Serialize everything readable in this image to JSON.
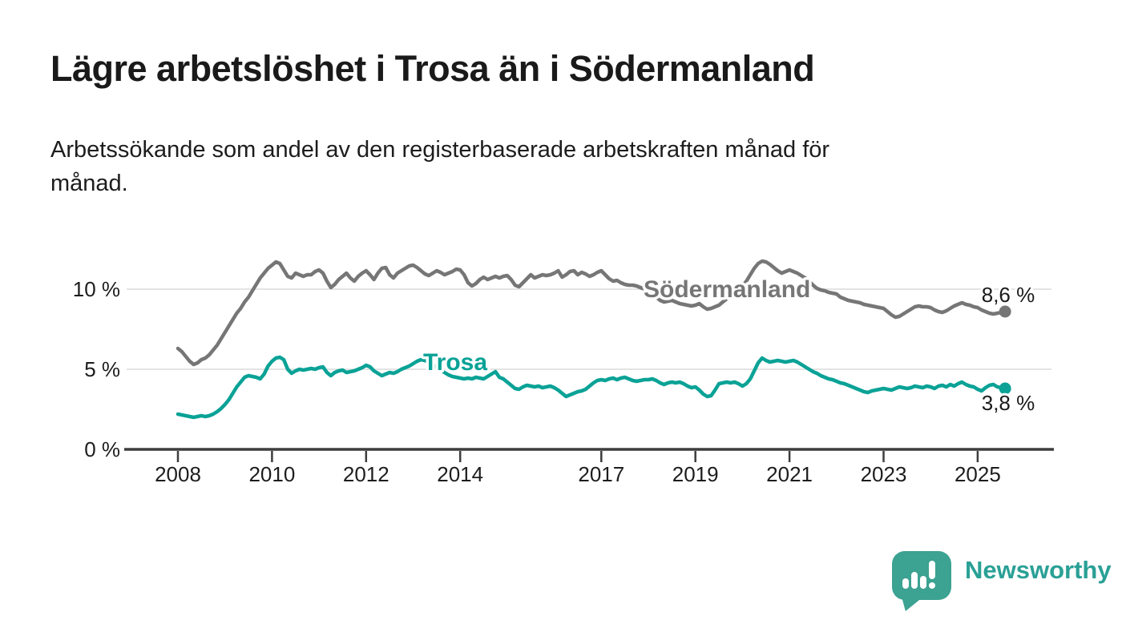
{
  "header": {
    "title": "Lägre arbetslöshet i Trosa än i Södermanland",
    "subtitle_lines": [
      "Arbetssökande som andel av den registerbaserade arbetskraften månad för",
      "månad."
    ]
  },
  "chart_data": {
    "type": "line",
    "title": "Lägre arbetslöshet i Trosa än i Södermanland",
    "xlabel": "",
    "ylabel": "",
    "unit": "%",
    "grid": "horizontal-gridlines",
    "legend_position": "inline-series-labels",
    "x_start": 2008,
    "x_interval": "monthly",
    "x_tick_years": [
      2008,
      2010,
      2012,
      2014,
      2017,
      2019,
      2021,
      2023,
      2025
    ],
    "x_tick_labels": [
      "2008",
      "2010",
      "2012",
      "2014",
      "2017",
      "2019",
      "2021",
      "2023",
      "2025"
    ],
    "y_ticks": [
      {
        "value": 0,
        "label": "0 %"
      },
      {
        "value": 5,
        "label": "5 %"
      },
      {
        "value": 10,
        "label": "10 %"
      }
    ],
    "ylim": [
      0,
      12.5
    ],
    "series": [
      {
        "name": "Södermanland",
        "color": "#767676",
        "end_label": "8,6 %",
        "end_value": 8.6,
        "values": [
          6.3,
          6.1,
          5.8,
          5.5,
          5.3,
          5.4,
          5.6,
          5.7,
          5.9,
          6.2,
          6.5,
          6.9,
          7.3,
          7.7,
          8.1,
          8.5,
          8.8,
          9.2,
          9.5,
          9.9,
          10.3,
          10.7,
          11.0,
          11.3,
          11.5,
          11.7,
          11.6,
          11.2,
          10.8,
          10.7,
          11.0,
          10.9,
          10.8,
          10.9,
          10.9,
          11.1,
          11.2,
          11.0,
          10.5,
          10.1,
          10.3,
          10.6,
          10.8,
          11.0,
          10.7,
          10.5,
          10.8,
          11.0,
          11.15,
          10.9,
          10.6,
          11.0,
          11.3,
          11.35,
          10.9,
          10.7,
          11.0,
          11.15,
          11.3,
          11.45,
          11.5,
          11.35,
          11.15,
          10.95,
          10.85,
          11.0,
          11.15,
          11.05,
          10.9,
          11.0,
          11.1,
          11.25,
          11.2,
          10.9,
          10.4,
          10.2,
          10.35,
          10.6,
          10.75,
          10.6,
          10.7,
          10.8,
          10.7,
          10.8,
          10.85,
          10.6,
          10.25,
          10.15,
          10.4,
          10.65,
          10.9,
          10.7,
          10.8,
          10.9,
          10.85,
          10.9,
          11.0,
          11.15,
          10.75,
          10.9,
          11.1,
          11.15,
          10.9,
          11.05,
          10.95,
          10.8,
          10.9,
          11.05,
          11.15,
          10.9,
          10.65,
          10.5,
          10.55,
          10.4,
          10.3,
          10.25,
          10.25,
          10.2,
          10.1,
          10.0,
          9.9,
          9.7,
          9.5,
          9.3,
          9.2,
          9.25,
          9.3,
          9.2,
          9.1,
          9.05,
          9.0,
          8.95,
          9.0,
          9.1,
          8.9,
          8.75,
          8.8,
          8.9,
          9.0,
          9.2,
          9.4,
          9.6,
          9.8,
          10.0,
          10.2,
          10.5,
          10.9,
          11.3,
          11.6,
          11.75,
          11.7,
          11.55,
          11.35,
          11.15,
          11.0,
          11.1,
          11.2,
          11.1,
          11.0,
          10.85,
          10.7,
          10.5,
          10.25,
          10.05,
          9.95,
          9.9,
          9.8,
          9.75,
          9.7,
          9.5,
          9.4,
          9.3,
          9.25,
          9.2,
          9.15,
          9.05,
          9.0,
          8.95,
          8.9,
          8.85,
          8.8,
          8.6,
          8.4,
          8.25,
          8.3,
          8.45,
          8.6,
          8.75,
          8.9,
          8.95,
          8.9,
          8.9,
          8.85,
          8.7,
          8.6,
          8.55,
          8.65,
          8.8,
          8.95,
          9.05,
          9.15,
          9.05,
          9.0,
          8.9,
          8.85,
          8.7,
          8.6,
          8.5,
          8.45,
          8.5,
          8.55,
          8.6
        ]
      },
      {
        "name": "Trosa",
        "color": "#0aa296",
        "end_label": "3,8 %",
        "end_value": 3.8,
        "values": [
          2.2,
          2.15,
          2.1,
          2.05,
          2.0,
          2.05,
          2.1,
          2.05,
          2.1,
          2.2,
          2.35,
          2.55,
          2.8,
          3.1,
          3.5,
          3.9,
          4.2,
          4.5,
          4.6,
          4.55,
          4.5,
          4.4,
          4.7,
          5.2,
          5.5,
          5.7,
          5.75,
          5.6,
          5.0,
          4.75,
          4.9,
          5.0,
          4.95,
          5.0,
          5.05,
          5.0,
          5.1,
          5.15,
          4.8,
          4.6,
          4.8,
          4.9,
          4.95,
          4.8,
          4.85,
          4.9,
          5.0,
          5.1,
          5.25,
          5.15,
          4.9,
          4.75,
          4.6,
          4.7,
          4.8,
          4.75,
          4.85,
          5.0,
          5.1,
          5.2,
          5.35,
          5.5,
          5.6,
          5.55,
          5.45,
          5.3,
          5.1,
          4.95,
          4.8,
          4.65,
          4.55,
          4.5,
          4.45,
          4.4,
          4.45,
          4.4,
          4.5,
          4.45,
          4.4,
          4.55,
          4.7,
          4.85,
          4.5,
          4.4,
          4.2,
          4.0,
          3.8,
          3.75,
          3.9,
          4.0,
          3.95,
          3.9,
          3.95,
          3.85,
          3.9,
          3.95,
          3.85,
          3.7,
          3.5,
          3.3,
          3.4,
          3.5,
          3.6,
          3.65,
          3.75,
          3.95,
          4.15,
          4.3,
          4.35,
          4.3,
          4.4,
          4.45,
          4.35,
          4.45,
          4.5,
          4.4,
          4.3,
          4.25,
          4.3,
          4.35,
          4.35,
          4.4,
          4.3,
          4.15,
          4.05,
          4.15,
          4.2,
          4.15,
          4.2,
          4.1,
          3.95,
          3.85,
          3.9,
          3.7,
          3.45,
          3.3,
          3.35,
          3.7,
          4.1,
          4.15,
          4.2,
          4.15,
          4.2,
          4.1,
          3.95,
          4.1,
          4.4,
          4.9,
          5.4,
          5.7,
          5.55,
          5.45,
          5.5,
          5.55,
          5.5,
          5.45,
          5.5,
          5.55,
          5.45,
          5.3,
          5.15,
          5.0,
          4.85,
          4.75,
          4.6,
          4.5,
          4.4,
          4.35,
          4.25,
          4.15,
          4.1,
          4.0,
          3.9,
          3.8,
          3.7,
          3.6,
          3.55,
          3.65,
          3.7,
          3.75,
          3.8,
          3.75,
          3.7,
          3.8,
          3.9,
          3.85,
          3.8,
          3.85,
          3.95,
          3.9,
          3.85,
          3.95,
          3.9,
          3.8,
          3.95,
          4.0,
          3.9,
          4.05,
          3.95,
          4.1,
          4.2,
          4.05,
          3.95,
          3.9,
          3.75,
          3.65,
          3.85,
          4.0,
          4.05,
          3.9,
          3.85,
          3.8
        ]
      }
    ],
    "style": {
      "gridline_color": "#dcdcdc",
      "axis_color": "#3d3d3d",
      "text_color": "#1d1d1d"
    }
  },
  "footer": {
    "brand": "Newsworthy",
    "logo_icon": "newsworthy-speech-bubble-with-bar-chart-and-exclamation",
    "logo_color": "#3ca291",
    "wordmark_color": "#2aa096"
  }
}
